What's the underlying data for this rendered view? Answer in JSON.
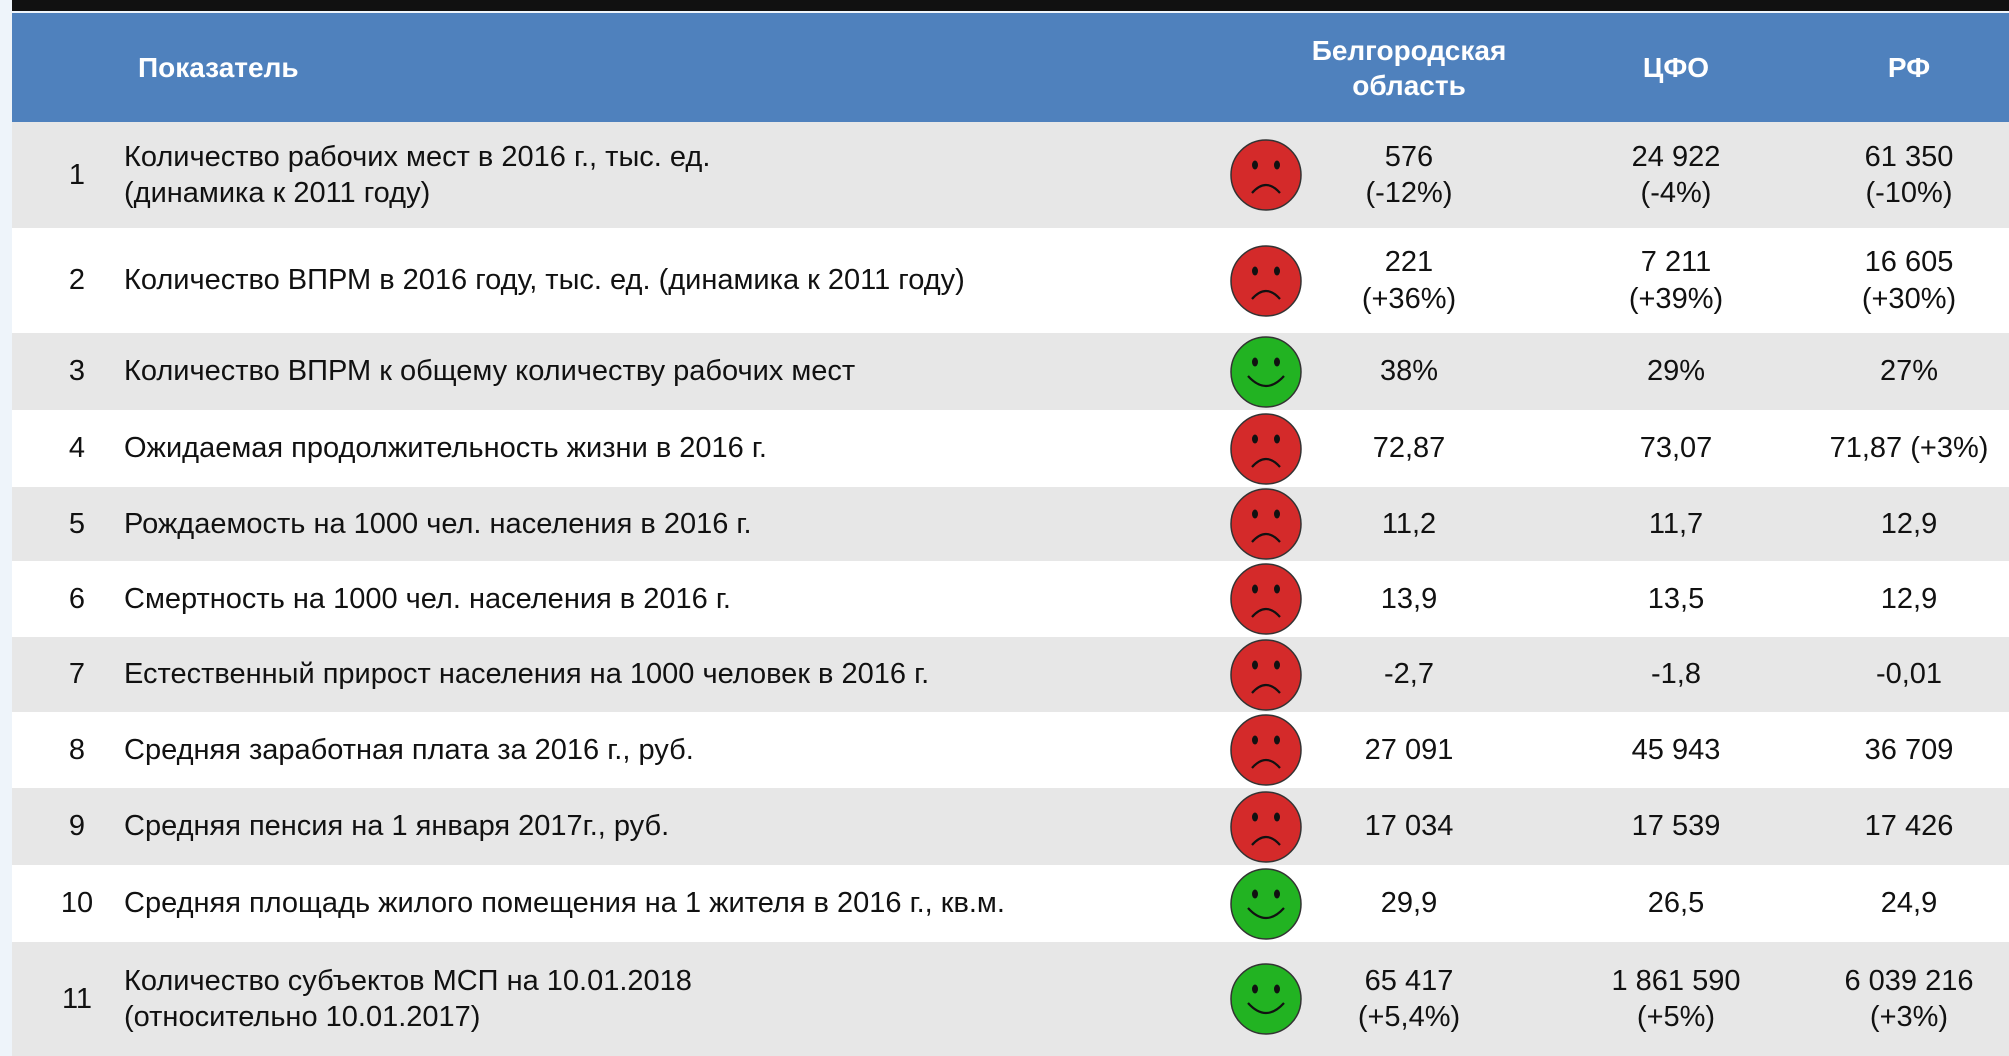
{
  "table": {
    "header": [
      "Показатель",
      [
        "Белгородская",
        "область"
      ],
      "ЦФО",
      "РФ"
    ],
    "rows": [
      {
        "n": "1",
        "label": [
          "Количество рабочих мест в 2016 г., тыс. ед.",
          "(динамика к 2011 году)"
        ],
        "face": {
          "color": "#d42a2a",
          "smile": false
        },
        "cells": [
          [
            "576",
            "(-12%)"
          ],
          [
            "24 922",
            "(-4%)"
          ],
          [
            "61 350",
            "(-10%)"
          ]
        ]
      },
      {
        "n": "2",
        "label": [
          "Количество ВПРМ в 2016 году, тыс. ед. (динамика к 2011 году)"
        ],
        "face": {
          "color": "#d42a2a",
          "smile": false
        },
        "cells": [
          [
            "221",
            "(+36%)"
          ],
          [
            "7 211",
            "(+39%)"
          ],
          [
            "16 605",
            "(+30%)"
          ]
        ]
      },
      {
        "n": "3",
        "label": [
          "Количество ВПРМ к общему количеству рабочих мест"
        ],
        "face": {
          "color": "#22b322",
          "smile": true
        },
        "cells": [
          [
            "38%"
          ],
          [
            "29%"
          ],
          [
            "27%"
          ]
        ]
      },
      {
        "n": "4",
        "label": [
          "Ожидаемая продолжительность жизни в 2016 г."
        ],
        "face": {
          "color": "#d42a2a",
          "smile": false
        },
        "cells": [
          [
            "72,87"
          ],
          [
            "73,07"
          ],
          [
            "71,87 (+3%)"
          ]
        ]
      },
      {
        "n": "5",
        "label": [
          "Рождаемость на 1000 чел. населения в 2016 г."
        ],
        "face": {
          "color": "#d42a2a",
          "smile": false
        },
        "cells": [
          [
            "11,2"
          ],
          [
            "11,7"
          ],
          [
            "12,9"
          ]
        ]
      },
      {
        "n": "6",
        "label": [
          "Смертность на 1000 чел. населения в 2016 г."
        ],
        "face": {
          "color": "#d42a2a",
          "smile": false
        },
        "cells": [
          [
            "13,9"
          ],
          [
            "13,5"
          ],
          [
            "12,9"
          ]
        ]
      },
      {
        "n": "7",
        "label": [
          "Естественный прирост населения на 1000 человек в 2016 г."
        ],
        "face": {
          "color": "#d42a2a",
          "smile": false
        },
        "cells": [
          [
            "-2,7"
          ],
          [
            "-1,8"
          ],
          [
            "-0,01"
          ]
        ]
      },
      {
        "n": "8",
        "label": [
          "Средняя заработная плата за 2016 г., руб."
        ],
        "face": {
          "color": "#d42a2a",
          "smile": false
        },
        "cells": [
          [
            "27 091"
          ],
          [
            "45 943"
          ],
          [
            "36 709"
          ]
        ]
      },
      {
        "n": "9",
        "label": [
          "Средняя пенсия на 1 января 2017г., руб."
        ],
        "face": {
          "color": "#d42a2a",
          "smile": false
        },
        "cells": [
          [
            "17 034"
          ],
          [
            "17 539"
          ],
          [
            "17 426"
          ]
        ]
      },
      {
        "n": "10",
        "label": [
          "Средняя площадь жилого помещения на 1 жителя в 2016 г., кв.м."
        ],
        "face": {
          "color": "#22b322",
          "smile": true
        },
        "cells": [
          [
            "29,9"
          ],
          [
            "26,5"
          ],
          [
            "24,9"
          ]
        ]
      },
      {
        "n": "11",
        "label": [
          "Количество субъектов МСП на 10.01.2018",
          "(относительно 10.01.2017)"
        ],
        "face": {
          "color": "#22b322",
          "smile": true
        },
        "cells": [
          [
            "65 417",
            "(+5,4%)"
          ],
          [
            "1 861 590",
            "(+5%)"
          ],
          [
            "6 039 216",
            "(+3%)"
          ]
        ]
      }
    ]
  }
}
